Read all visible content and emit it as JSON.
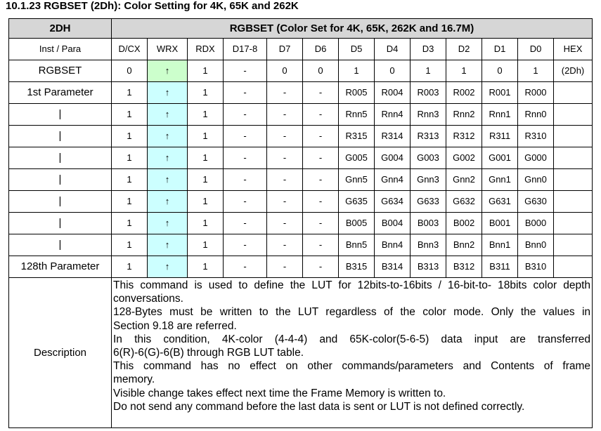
{
  "section_heading": "10.1.23 RGBSET (2Dh): Color Setting for 4K, 65K and 262K",
  "header": {
    "code": "2DH",
    "title": "RGBSET (Color Set for 4K, 65K, 262K and 16.7M)"
  },
  "columns": [
    "Inst / Para",
    "D/CX",
    "WRX",
    "RDX",
    "D17-8",
    "D7",
    "D6",
    "D5",
    "D4",
    "D3",
    "D2",
    "D1",
    "D0",
    "HEX"
  ],
  "rows": [
    {
      "label": "RGBSET",
      "cells": [
        "0",
        "↑",
        "1",
        "-",
        "0",
        "0",
        "1",
        "0",
        "1",
        "1",
        "0",
        "1",
        "(2Dh)"
      ]
    },
    {
      "label": "1st Parameter",
      "cells": [
        "1",
        "↑",
        "1",
        "-",
        "-",
        "-",
        "R005",
        "R004",
        "R003",
        "R002",
        "R001",
        "R000",
        ""
      ]
    },
    {
      "label": "|",
      "cells": [
        "1",
        "↑",
        "1",
        "-",
        "-",
        "-",
        "Rnn5",
        "Rnn4",
        "Rnn3",
        "Rnn2",
        "Rnn1",
        "Rnn0",
        ""
      ]
    },
    {
      "label": "|",
      "cells": [
        "1",
        "↑",
        "1",
        "-",
        "-",
        "-",
        "R315",
        "R314",
        "R313",
        "R312",
        "R311",
        "R310",
        ""
      ]
    },
    {
      "label": "|",
      "cells": [
        "1",
        "↑",
        "1",
        "-",
        "-",
        "-",
        "G005",
        "G004",
        "G003",
        "G002",
        "G001",
        "G000",
        ""
      ]
    },
    {
      "label": "|",
      "cells": [
        "1",
        "↑",
        "1",
        "-",
        "-",
        "-",
        "Gnn5",
        "Gnn4",
        "Gnn3",
        "Gnn2",
        "Gnn1",
        "Gnn0",
        ""
      ]
    },
    {
      "label": "|",
      "cells": [
        "1",
        "↑",
        "1",
        "-",
        "-",
        "-",
        "G635",
        "G634",
        "G633",
        "G632",
        "G631",
        "G630",
        ""
      ]
    },
    {
      "label": "|",
      "cells": [
        "1",
        "↑",
        "1",
        "-",
        "-",
        "-",
        "B005",
        "B004",
        "B003",
        "B002",
        "B001",
        "B000",
        ""
      ]
    },
    {
      "label": "|",
      "cells": [
        "1",
        "↑",
        "1",
        "-",
        "-",
        "-",
        "Bnn5",
        "Bnn4",
        "Bnn3",
        "Bnn2",
        "Bnn1",
        "Bnn0",
        ""
      ]
    },
    {
      "label": "128th Parameter",
      "cells": [
        "1",
        "↑",
        "1",
        "-",
        "-",
        "-",
        "B315",
        "B314",
        "B313",
        "B312",
        "B311",
        "B310",
        ""
      ]
    }
  ],
  "description": {
    "label": "Description",
    "lines": [
      "This command is used to define the LUT for 12bits-to-16bits / 16-bit-to- 18bits color depth",
      "conversations.",
      "128-Bytes must be written to the LUT regardless of the color mode. Only the values in",
      "Section 9.18 are referred.",
      "In this condition, 4K-color (4-4-4) and 65K-color(5-6-5) data input are transferred",
      "6(R)-6(G)-6(B) through RGB LUT table.",
      "This command has no effect on other commands/parameters and Contents of frame",
      "memory.",
      "Visible change takes effect next time the Frame Memory is written to.",
      "Do not send any command before the last data is sent or LUT is not defined correctly."
    ],
    "justified": [
      true,
      false,
      true,
      false,
      true,
      false,
      true,
      false,
      false,
      false
    ]
  },
  "colors": {
    "header_bg": "#d6d6d6",
    "wrx_command_bg": "#ccffcc",
    "wrx_parameter_bg": "#ccffff"
  }
}
